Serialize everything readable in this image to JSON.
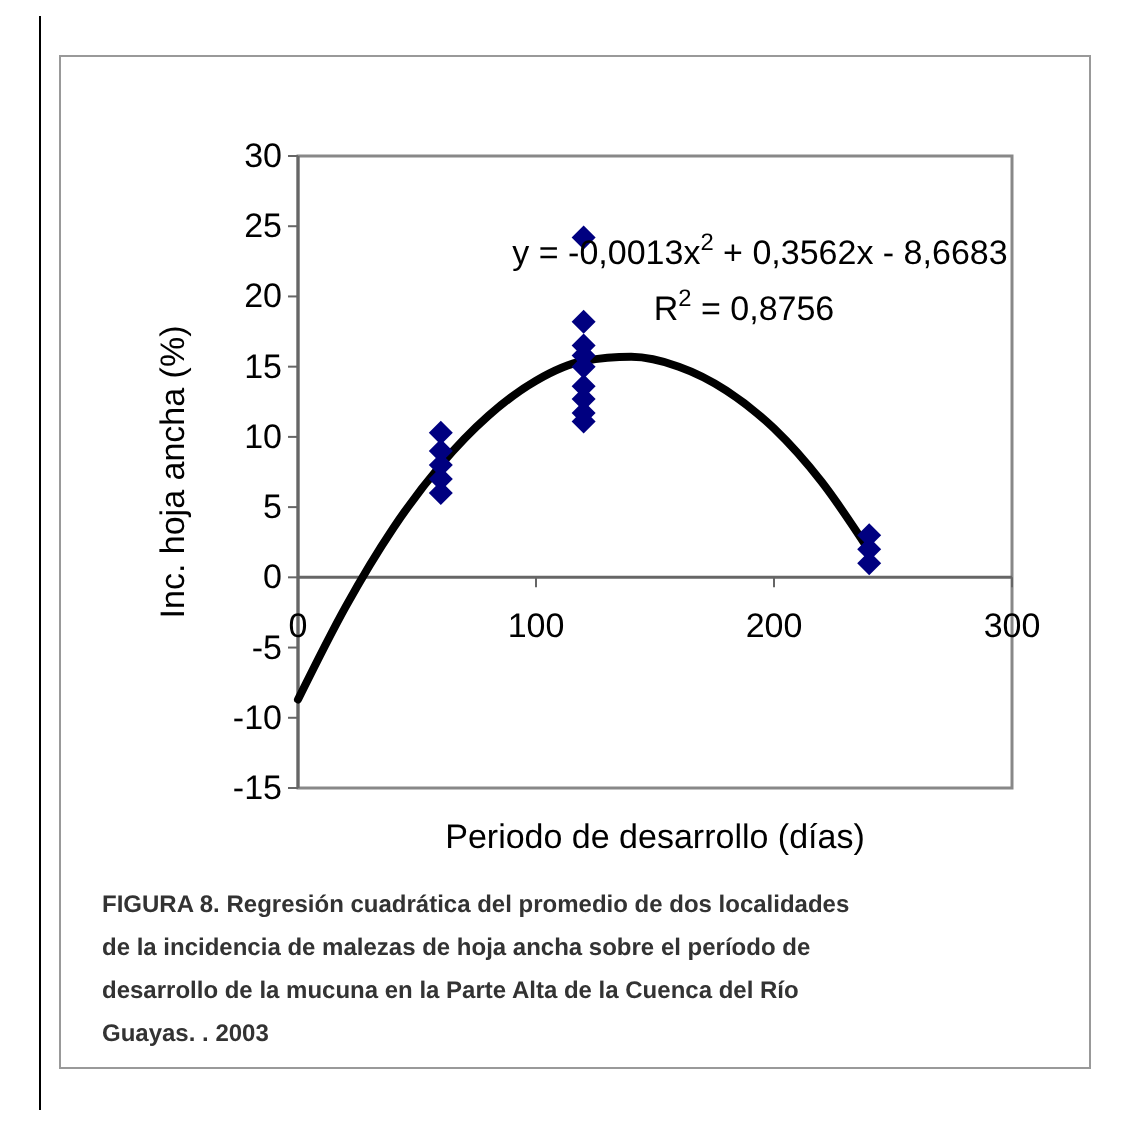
{
  "chart_data": {
    "type": "scatter",
    "xlabel": "Periodo de desarrollo (días)",
    "ylabel": "Inc. hoja ancha (%)",
    "xlim": [
      0,
      300
    ],
    "xticks": [
      0,
      100,
      200,
      300
    ],
    "ylim": [
      -15,
      30
    ],
    "yticks": [
      -15,
      -10,
      -5,
      0,
      5,
      10,
      15,
      20,
      25,
      30
    ],
    "grid": false,
    "series": [
      {
        "type": "scatter",
        "marker": "diamond",
        "color": "#000080",
        "x": [
          60,
          60,
          60,
          60,
          60,
          120,
          120,
          120,
          120,
          120,
          120,
          120,
          120,
          120,
          240,
          240,
          240
        ],
        "values": [
          6,
          7,
          8,
          9,
          10.3,
          24.2,
          18.2,
          16.5,
          15.8,
          15,
          13.6,
          12.7,
          11.7,
          11.1,
          3,
          2,
          1
        ]
      },
      {
        "type": "line",
        "marker": "none",
        "color": "#000000",
        "x": [
          0,
          20,
          40,
          60,
          80,
          100,
          120,
          140,
          160,
          180,
          200,
          220,
          240
        ],
        "values": [
          -8.7,
          -2.1,
          3.5,
          8.0,
          11.5,
          14.0,
          15.4,
          15.7,
          15.0,
          13.3,
          10.6,
          6.8,
          1.9
        ]
      }
    ],
    "annotations": [
      "y = -0,0013x$^{2}$ + 0,3562x - 8,6683",
      "R$^{2}$ = 0,8756",
      "FIGURA 8. Regresión cuadrática del promedio de dos localidades de la incidencia de malezas de hoja ancha sobre el período de desarrollo de la mucuna en la Parte Alta de la Cuenca del Río Guayas. . 2003"
    ]
  }
}
